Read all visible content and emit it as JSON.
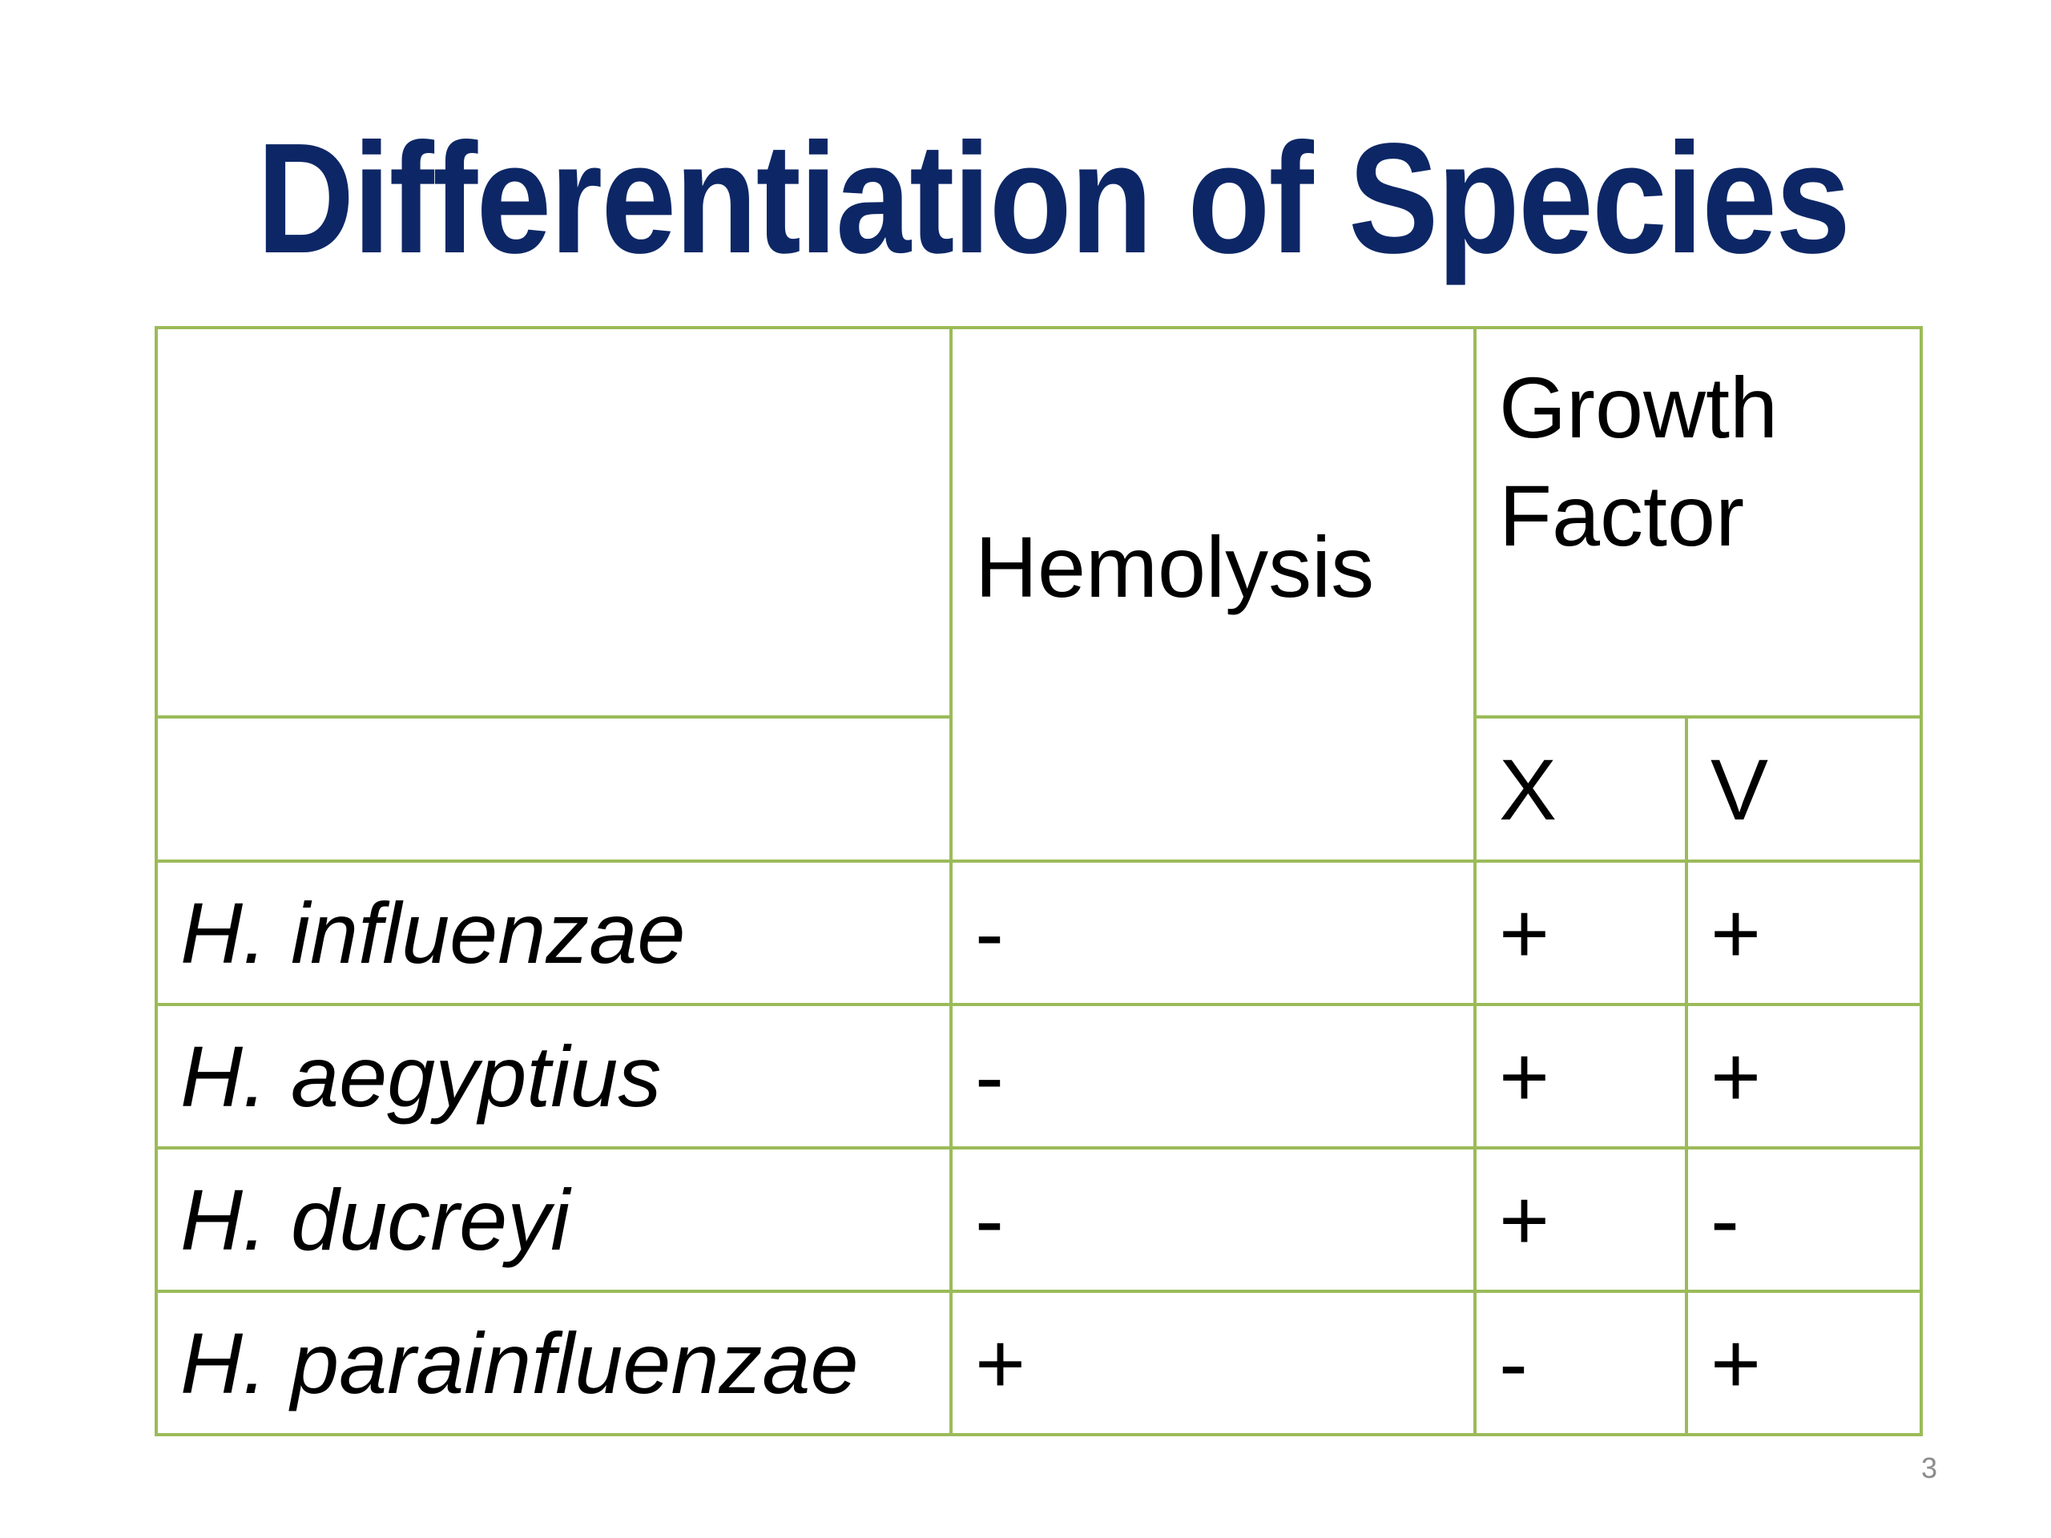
{
  "title": "Differentiation of Species",
  "table": {
    "headers": {
      "hemolysis": "Hemolysis",
      "growth_factor_line1": "Growth",
      "growth_factor_line2": "Factor",
      "x": "X",
      "v": "V"
    },
    "rows": [
      {
        "species": "H. influenzae",
        "hemolysis": "-",
        "x": "+",
        "v": "+"
      },
      {
        "species": "H. aegyptius",
        "hemolysis": "-",
        "x": "+",
        "v": "+"
      },
      {
        "species": "H. ducreyi",
        "hemolysis": "-",
        "x": "+",
        "v": "-"
      },
      {
        "species": "H. parainfluenzae",
        "hemolysis": "+",
        "x": "-",
        "v": "+"
      }
    ]
  },
  "page_number": "3",
  "colors": {
    "title": "#0d2766",
    "table_border": "#9bbb59"
  }
}
